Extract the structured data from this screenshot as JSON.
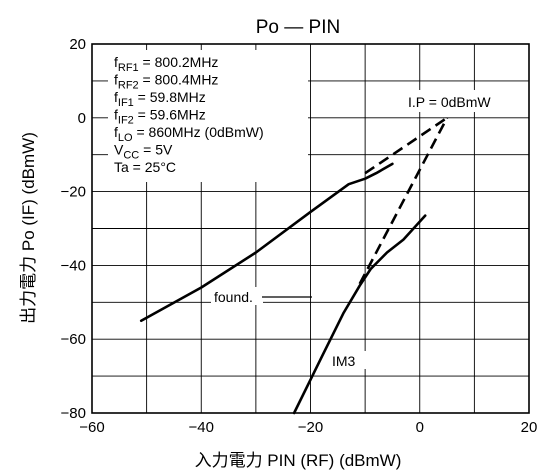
{
  "chart_data": {
    "type": "line",
    "title": "Po — PIN",
    "xlabel": "入力電力  PIN (RF)  (dBmW)",
    "ylabel": "出力電力  Po (IF)  (dBmW)",
    "xlim": [
      -60,
      20
    ],
    "ylim": [
      -80,
      20
    ],
    "x_ticks": [
      -60,
      -40,
      -20,
      0,
      20
    ],
    "y_ticks": [
      -80,
      -60,
      -40,
      -20,
      0,
      20
    ],
    "x_tick_labels": [
      "−60",
      "−40",
      "−20",
      "0",
      "20"
    ],
    "y_tick_labels": [
      "−80",
      "−60",
      "−40",
      "−20",
      "0",
      "20"
    ],
    "grid": true,
    "conditions": [
      "fRF1 = 800.2MHz",
      "fRF2 = 800.4MHz",
      "fIF1 = 59.8MHz",
      "fIF2 = 59.6MHz",
      "fLO = 860MHz (0dBmW)",
      "VCC = 5V",
      "Ta = 25°C"
    ],
    "annotations": {
      "intercept": "I.P = 0dBmW",
      "fundamental": "found.",
      "im3": "IM3"
    },
    "series": [
      {
        "name": "found.",
        "style": "solid",
        "x": [
          -51,
          -40,
          -30,
          -20,
          -13,
          -10,
          -8,
          -5
        ],
        "y": [
          -55,
          -46,
          -36.5,
          -25.5,
          -18,
          -16.5,
          -15,
          -12.5
        ]
      },
      {
        "name": "IM3",
        "style": "solid",
        "x": [
          -23,
          -18,
          -14,
          -11,
          -9,
          -6,
          -3,
          1
        ],
        "y": [
          -80,
          -65,
          -53,
          -45.5,
          -41,
          -36.5,
          -33,
          -26.5
        ]
      },
      {
        "name": "found. extrapolation",
        "style": "dashed",
        "x": [
          -10,
          5
        ],
        "y": [
          -15,
          0
        ]
      },
      {
        "name": "IM3 extrapolation",
        "style": "dashed",
        "x": [
          -11,
          5
        ],
        "y": [
          -45,
          0
        ]
      }
    ]
  }
}
